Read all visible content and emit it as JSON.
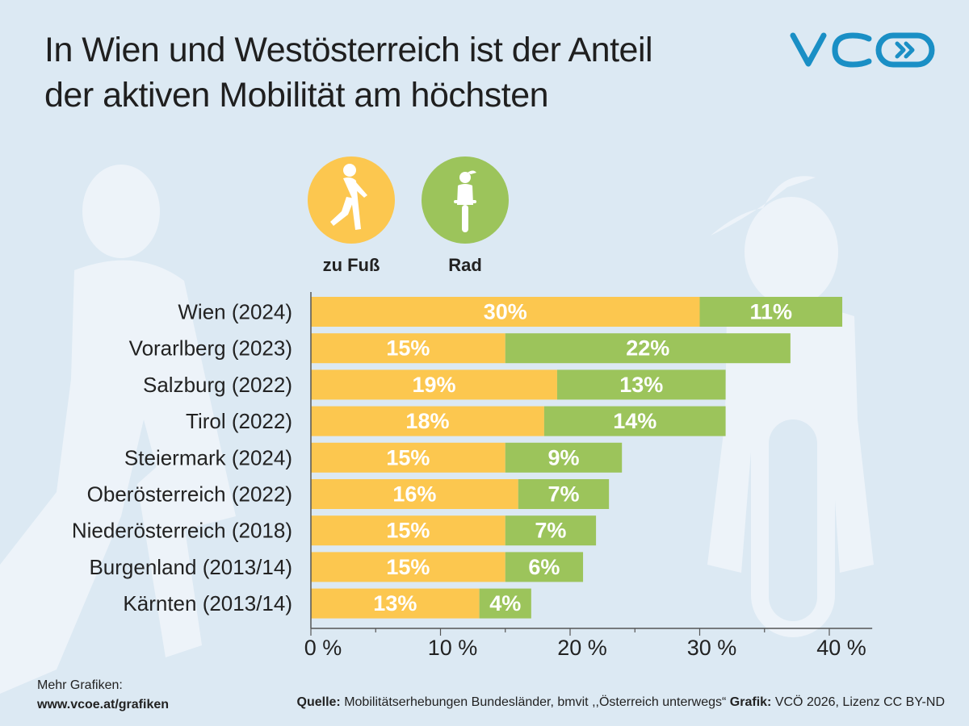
{
  "title": {
    "line1": "In Wien und Westösterreich ist der Anteil",
    "line2": "der aktiven Mobilität am höchsten"
  },
  "logo": {
    "text": "VCÖ"
  },
  "legend": [
    {
      "label": "zu Fuß",
      "color": "#fcc74f",
      "icon": "pedestrian-icon"
    },
    {
      "label": "Rad",
      "color": "#9cc45b",
      "icon": "cyclist-icon"
    }
  ],
  "colors": {
    "zu_fuss": "#fcc74f",
    "rad": "#9cc45b",
    "axis": "#555555",
    "background": "#dce9f3"
  },
  "chart_data": {
    "type": "bar",
    "orientation": "horizontal",
    "stacked": true,
    "categories": [
      "Wien (2024)",
      "Vorarlberg (2023)",
      "Salzburg (2022)",
      "Tirol (2022)",
      "Steiermark (2024)",
      "Oberösterreich (2022)",
      "Niederösterreich (2018)",
      "Burgenland (2013/14)",
      "Kärnten (2013/14)"
    ],
    "series": [
      {
        "name": "zu Fuß",
        "values": [
          30,
          15,
          19,
          18,
          15,
          16,
          15,
          15,
          13
        ]
      },
      {
        "name": "Rad",
        "values": [
          11,
          22,
          13,
          14,
          9,
          7,
          7,
          6,
          4
        ]
      }
    ],
    "value_labels": {
      "zu Fuß": [
        "30%",
        "15%",
        "19%",
        "18%",
        "15%",
        "16%",
        "15%",
        "15%",
        "13%"
      ],
      "Rad": [
        "11%",
        "22%",
        "13%",
        "14%",
        "9%",
        "7%",
        "7%",
        "6%",
        "4%"
      ]
    },
    "x_ticks": [
      0,
      10,
      20,
      30,
      40
    ],
    "x_tick_labels": [
      "0 %",
      "10 %",
      "20 %",
      "30 %",
      "40 %"
    ],
    "xlim": [
      0,
      43
    ],
    "grid": false,
    "legend_position": "top"
  },
  "footer": {
    "more_label": "Mehr Grafiken:",
    "more_url": "www.vcoe.at/grafiken",
    "source_label": "Quelle:",
    "source_text": "Mobilitätserhebungen Bundesländer, bmvit ,,Österreich unterwegs“",
    "graphic_label": "Grafik:",
    "graphic_text": "VCÖ 2026, Lizenz CC BY-ND"
  }
}
